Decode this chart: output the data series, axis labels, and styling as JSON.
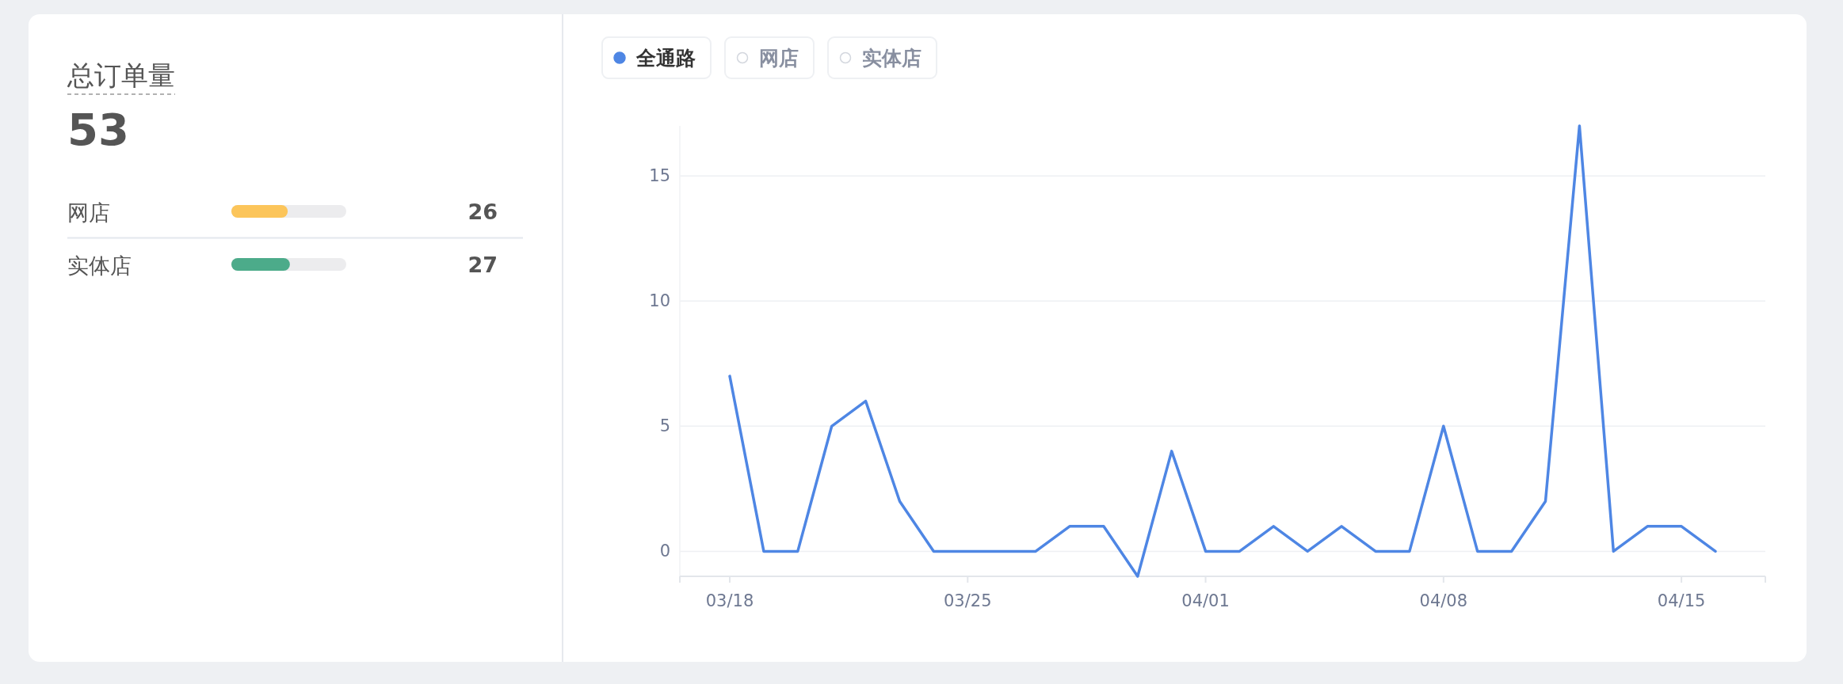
{
  "chart_data": [
    {
      "type": "bar",
      "orientation": "horizontal",
      "title": "总订单量",
      "subtitle": "53",
      "categories": [
        "网店",
        "实体店"
      ],
      "values": [
        26,
        27
      ],
      "colors": [
        "#fcc55a",
        "#4cab8a"
      ],
      "data_labels": true
    },
    {
      "type": "line",
      "categories": [
        "03/18",
        null,
        null,
        null,
        null,
        null,
        null,
        "03/25",
        null,
        null,
        null,
        null,
        null,
        null,
        "04/01",
        null,
        null,
        null,
        null,
        null,
        null,
        "04/08",
        null,
        null,
        null,
        null,
        null,
        null,
        "04/15",
        null
      ],
      "series": [
        {
          "name": "全通路",
          "color": "#4e86e4",
          "values": [
            7,
            0,
            0,
            5,
            6,
            2,
            0,
            0,
            0,
            0,
            1,
            1,
            -1,
            4,
            0,
            0,
            1,
            0,
            1,
            0,
            0,
            5,
            0,
            0,
            2,
            17,
            0,
            1,
            1,
            0
          ]
        },
        {
          "name": "网店",
          "color": "#d3d7de",
          "values": [
            null,
            null,
            null,
            null,
            null,
            null,
            null,
            null,
            null,
            null,
            null,
            null,
            null,
            null,
            null,
            null,
            null,
            null,
            null,
            null,
            null,
            null,
            null,
            null,
            null,
            null,
            null,
            null,
            null,
            null
          ]
        },
        {
          "name": "实体店",
          "color": "#d3d7de",
          "values": [
            null,
            null,
            null,
            null,
            null,
            null,
            null,
            null,
            null,
            null,
            null,
            null,
            null,
            null,
            null,
            null,
            null,
            null,
            null,
            null,
            null,
            null,
            null,
            null,
            null,
            null,
            null,
            null,
            null,
            null
          ]
        }
      ],
      "ylim": [
        -1,
        17
      ],
      "yticks": [
        0,
        5,
        10,
        15
      ],
      "grid": "y",
      "legend": "top left",
      "marker": "none",
      "line_style": "solid"
    }
  ]
}
